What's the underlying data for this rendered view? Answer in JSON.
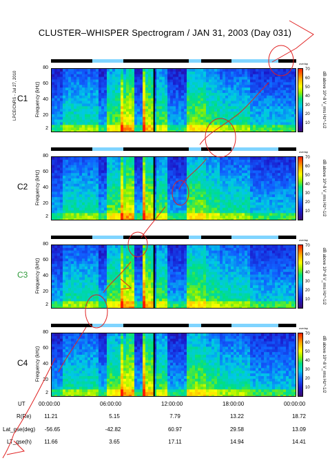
{
  "title": "CLUSTER–WHISPER Spectrogram / JAN 31, 2003 (Day 031)",
  "side_credit": "LPCE/CNRS - Jul 27, 2010",
  "chart_data": {
    "type": "heatmap",
    "x_unit": "UT",
    "xlim": [
      "00:00:00",
      "24:00:00"
    ],
    "y_axis_label": "Frequency (kHz)",
    "ylim": [
      2,
      80
    ],
    "y_ticks": [
      "80",
      "60",
      "40",
      "20",
      "2"
    ],
    "colorbar_label": "dB above 10^-8 V_rms Hz^-1/2",
    "colorbar_ticks": [
      "70",
      "60",
      "50",
      "40",
      "30",
      "20",
      "10"
    ],
    "colorbar_range": [
      5,
      70
    ],
    "overlap_marker": "overlap",
    "panels": [
      {
        "name": "C1",
        "label_color": "#000000"
      },
      {
        "name": "C2",
        "label_color": "#000000"
      },
      {
        "name": "C3",
        "label_color": "#2e9a3a"
      },
      {
        "name": "C4",
        "label_color": "#000000"
      }
    ]
  },
  "time_ticks": [
    "00:00:00",
    "06:00:00",
    "12:00:00",
    "18:00:00",
    "00:00:00"
  ],
  "ephemeris": {
    "labels": [
      "UT",
      "R(Re)",
      "Lat_gse(deg)",
      "LT_gse(h)"
    ],
    "rows": [
      [
        "11.21",
        "5.15",
        "7.79",
        "13.22",
        "18.72"
      ],
      [
        "-56.65",
        "-42.82",
        "60.97",
        "29.58",
        "13.09"
      ],
      [
        "11.66",
        "3.65",
        "17.11",
        "14.94",
        "14.41"
      ]
    ]
  }
}
